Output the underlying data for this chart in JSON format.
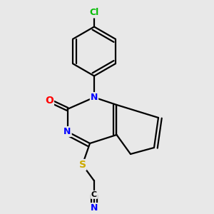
{
  "bg_color": "#e8e8e8",
  "bond_color": "#000000",
  "atom_colors": {
    "Cl": "#00bb00",
    "N": "#0000ff",
    "O": "#ff0000",
    "S": "#ccaa00",
    "C": "#000000"
  },
  "bond_width": 1.6,
  "font_size_atoms": 10
}
